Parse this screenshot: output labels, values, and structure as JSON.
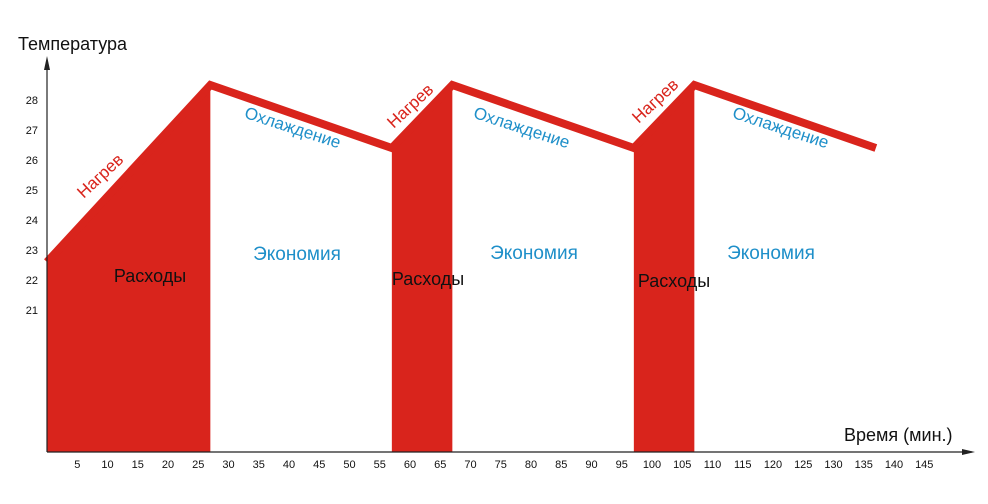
{
  "chart_data": {
    "type": "area",
    "title": "",
    "xlabel": "Время (мин.)",
    "ylabel": "Температура",
    "x_ticks": [
      5,
      10,
      15,
      20,
      25,
      30,
      35,
      40,
      45,
      50,
      55,
      60,
      65,
      70,
      75,
      80,
      85,
      90,
      95,
      100,
      105,
      110,
      115,
      120,
      125,
      130,
      135,
      140,
      145
    ],
    "y_ticks": [
      21,
      22,
      23,
      24,
      25,
      26,
      27,
      28
    ],
    "temperature_curve": {
      "x": [
        0,
        27,
        57,
        67,
        97,
        107,
        137
      ],
      "y": [
        22.6,
        28.5,
        26.4,
        28.5,
        26.4,
        28.5,
        26.4
      ]
    },
    "heating_periods": [
      [
        0,
        27
      ],
      [
        57,
        67
      ],
      [
        97,
        107
      ]
    ],
    "cooling_periods": [
      [
        27,
        57
      ],
      [
        67,
        97
      ],
      [
        107,
        137
      ]
    ],
    "annotations": {
      "heating": "Нагрев",
      "cooling": "Охлаждение",
      "costs": "Расходы",
      "savings": "Экономия"
    },
    "colors": {
      "heating_fill": "#D9241C",
      "curve": "#D9241C",
      "heating_text": "#D9241C",
      "cooling_text": "#1E8FC9",
      "savings_text": "#1E8FC9",
      "costs_text": "#111111",
      "axis": "#222222"
    }
  }
}
